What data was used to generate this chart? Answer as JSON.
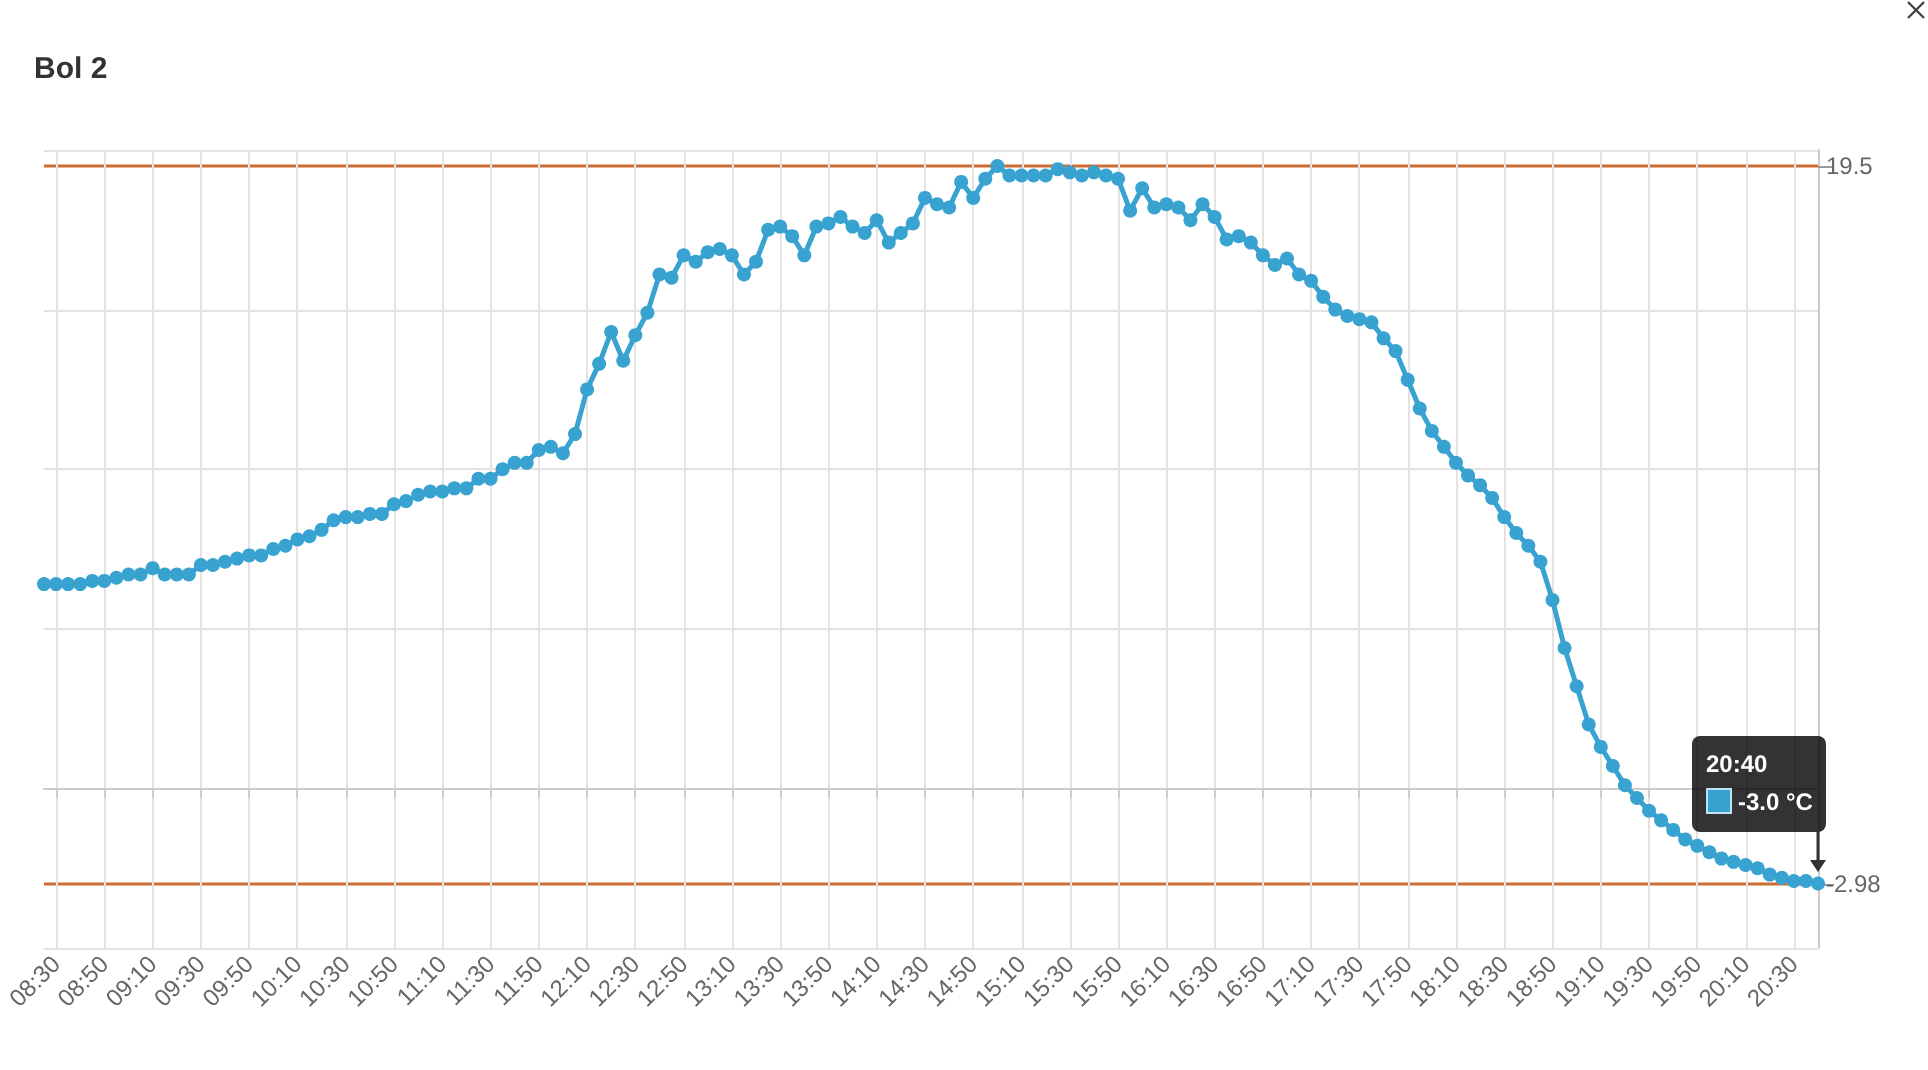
{
  "chart_data": {
    "type": "line",
    "title": "Bol 2",
    "x": [
      8.4167,
      8.5,
      8.5833,
      8.6667,
      8.75,
      8.8333,
      8.9167,
      9,
      9.0833,
      9.1667,
      9.25,
      9.3333,
      9.4167,
      9.5,
      9.5833,
      9.6667,
      9.75,
      9.8333,
      9.9167,
      10,
      10.0833,
      10.1667,
      10.25,
      10.3333,
      10.4167,
      10.5,
      10.5833,
      10.6667,
      10.75,
      10.8333,
      10.9167,
      11,
      11.0833,
      11.1667,
      11.25,
      11.3333,
      11.4167,
      11.5,
      11.5833,
      11.6667,
      11.75,
      11.8333,
      11.9167,
      12,
      12.0833,
      12.1667,
      12.25,
      12.3333,
      12.4167,
      12.5,
      12.5833,
      12.6667,
      12.75,
      12.8333,
      12.9167,
      13,
      13.0833,
      13.1667,
      13.25,
      13.3333,
      13.4167,
      13.5,
      13.5833,
      13.6667,
      13.75,
      13.8333,
      13.9167,
      14,
      14.0833,
      14.1667,
      14.25,
      14.3333,
      14.4167,
      14.5,
      14.5833,
      14.6667,
      14.75,
      14.8333,
      14.9167,
      15,
      15.0833,
      15.1667,
      15.25,
      15.3333,
      15.4167,
      15.5,
      15.5833,
      15.6667,
      15.75,
      15.8333,
      15.9167,
      16,
      16.0833,
      16.1667,
      16.25,
      16.3333,
      16.4167,
      16.5,
      16.5833,
      16.6667,
      16.75,
      16.8333,
      16.9167,
      17,
      17.0833,
      17.1667,
      17.25,
      17.3333,
      17.4167,
      17.5,
      17.5833,
      17.6667,
      17.75,
      17.8333,
      17.9167,
      18,
      18.0833,
      18.1667,
      18.25,
      18.3333,
      18.4167,
      18.5,
      18.5833,
      18.6667,
      18.75,
      18.8333,
      18.9167,
      19,
      19.0833,
      19.1667,
      19.25,
      19.3333,
      19.4167,
      19.5,
      19.5833,
      19.6667,
      19.75,
      19.8333,
      19.9167,
      20,
      20.0833,
      20.1667,
      20.25,
      20.3333,
      20.4167,
      20.5,
      20.5833,
      20.6667
    ],
    "values": [
      6.4,
      6.4,
      6.4,
      6.4,
      6.5,
      6.5,
      6.6,
      6.7,
      6.7,
      6.9,
      6.7,
      6.7,
      6.7,
      7.0,
      7.0,
      7.1,
      7.2,
      7.3,
      7.3,
      7.5,
      7.6,
      7.8,
      7.9,
      8.1,
      8.4,
      8.5,
      8.5,
      8.6,
      8.6,
      8.9,
      9.0,
      9.2,
      9.3,
      9.3,
      9.4,
      9.4,
      9.7,
      9.7,
      10.0,
      10.2,
      10.2,
      10.6,
      10.7,
      10.5,
      11.1,
      12.5,
      13.3,
      14.3,
      13.4,
      14.2,
      14.9,
      16.1,
      16.0,
      16.7,
      16.5,
      16.8,
      16.9,
      16.7,
      16.1,
      16.5,
      17.5,
      17.6,
      17.3,
      16.7,
      17.6,
      17.7,
      17.9,
      17.6,
      17.4,
      17.8,
      17.1,
      17.4,
      17.7,
      18.5,
      18.3,
      18.2,
      19.0,
      18.5,
      19.1,
      19.5,
      19.2,
      19.2,
      19.2,
      19.2,
      19.4,
      19.3,
      19.2,
      19.3,
      19.2,
      19.1,
      18.1,
      18.8,
      18.2,
      18.3,
      18.2,
      17.8,
      18.3,
      17.9,
      17.2,
      17.3,
      17.1,
      16.7,
      16.4,
      16.6,
      16.1,
      15.9,
      15.4,
      15.0,
      14.8,
      14.7,
      14.6,
      14.1,
      13.7,
      12.8,
      11.9,
      11.2,
      10.7,
      10.2,
      9.8,
      9.5,
      9.1,
      8.5,
      8.0,
      7.6,
      7.1,
      5.9,
      4.4,
      3.2,
      2.0,
      1.3,
      0.7,
      0.1,
      -0.3,
      -0.7,
      -1.0,
      -1.3,
      -1.6,
      -1.8,
      -2.0,
      -2.2,
      -2.3,
      -2.4,
      -2.5,
      -2.7,
      -2.8,
      -2.9,
      -2.9,
      -2.98
    ],
    "color": "#38a2d0",
    "xlim": [
      8.4167,
      20.6667
    ],
    "xticks": [
      {
        "value": 8.5,
        "label": "08:30"
      },
      {
        "value": 8.8333,
        "label": "08:50"
      },
      {
        "value": 9.1667,
        "label": "09:10"
      },
      {
        "value": 9.5,
        "label": "09:30"
      },
      {
        "value": 9.8333,
        "label": "09:50"
      },
      {
        "value": 10.1667,
        "label": "10:10"
      },
      {
        "value": 10.5,
        "label": "10:30"
      },
      {
        "value": 10.8333,
        "label": "10:50"
      },
      {
        "value": 11.1667,
        "label": "11:10"
      },
      {
        "value": 11.5,
        "label": "11:30"
      },
      {
        "value": 11.8333,
        "label": "11:50"
      },
      {
        "value": 12.1667,
        "label": "12:10"
      },
      {
        "value": 12.5,
        "label": "12:30"
      },
      {
        "value": 12.8333,
        "label": "12:50"
      },
      {
        "value": 13.1667,
        "label": "13:10"
      },
      {
        "value": 13.5,
        "label": "13:30"
      },
      {
        "value": 13.8333,
        "label": "13:50"
      },
      {
        "value": 14.1667,
        "label": "14:10"
      },
      {
        "value": 14.5,
        "label": "14:30"
      },
      {
        "value": 14.8333,
        "label": "14:50"
      },
      {
        "value": 15.1667,
        "label": "15:10"
      },
      {
        "value": 15.5,
        "label": "15:30"
      },
      {
        "value": 15.8333,
        "label": "15:50"
      },
      {
        "value": 16.1667,
        "label": "16:10"
      },
      {
        "value": 16.5,
        "label": "16:30"
      },
      {
        "value": 16.8333,
        "label": "16:50"
      },
      {
        "value": 17.1667,
        "label": "17:10"
      },
      {
        "value": 17.5,
        "label": "17:30"
      },
      {
        "value": 17.8333,
        "label": "17:50"
      },
      {
        "value": 18.1667,
        "label": "18:10"
      },
      {
        "value": 18.5,
        "label": "18:30"
      },
      {
        "value": 18.8333,
        "label": "18:50"
      },
      {
        "value": 19.1667,
        "label": "19:10"
      },
      {
        "value": 19.5,
        "label": "19:30"
      },
      {
        "value": 19.8333,
        "label": "19:50"
      },
      {
        "value": 20.1667,
        "label": "20:10"
      },
      {
        "value": 20.5,
        "label": "20:30"
      }
    ],
    "ylim": [
      -5,
      20
    ],
    "yticks": [
      {
        "value": -5,
        "label": null
      },
      -2.98,
      {
        "value": 0,
        "label": null
      },
      {
        "value": 5,
        "label": null
      },
      {
        "value": 10,
        "label": null
      },
      {
        "value": 15,
        "label": null
      },
      19.5,
      {
        "value": 20,
        "label": null
      }
    ],
    "annotations": [
      {
        "text": "20:40\n-3.0 °C",
        "x": 20.6667,
        "y": -2.98
      }
    ],
    "grid": true,
    "marker": "circle",
    "line_style": "solid"
  }
}
